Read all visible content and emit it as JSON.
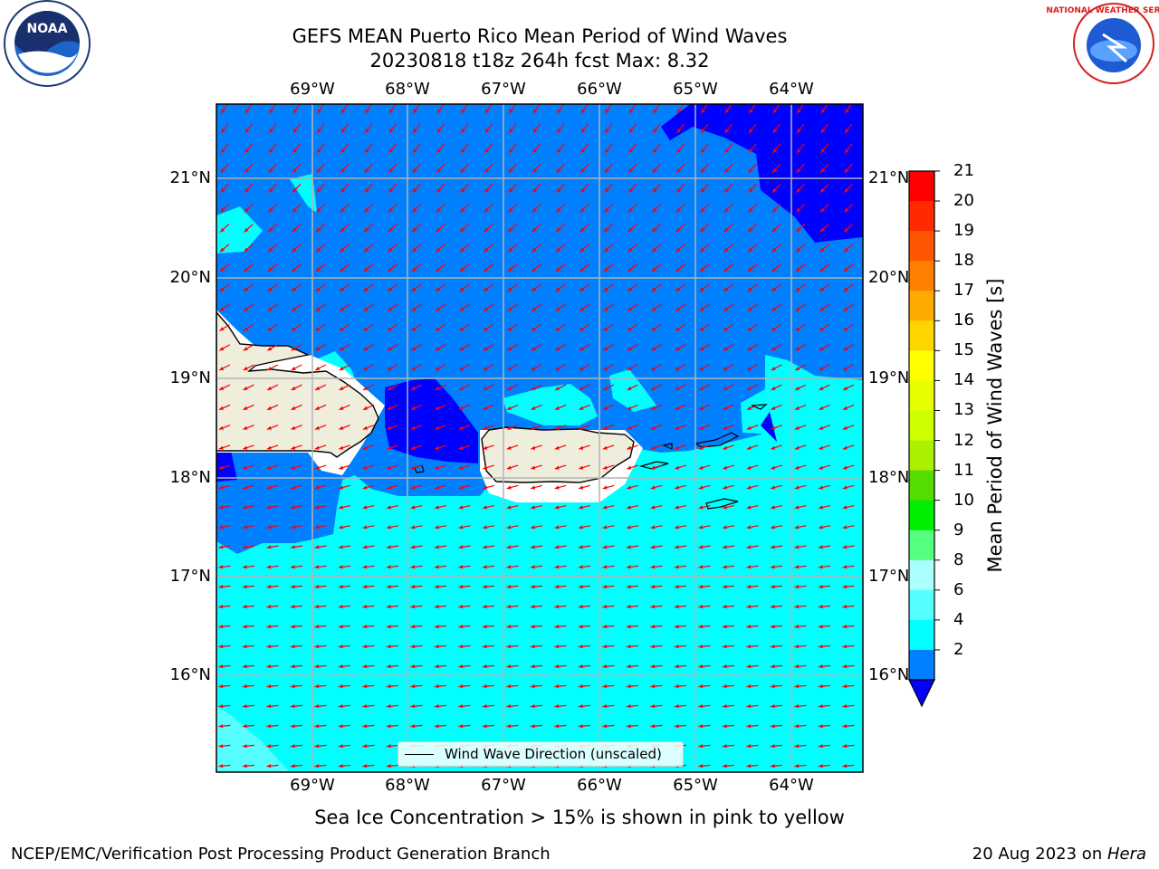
{
  "title": {
    "line1": "GEFS MEAN Puerto Rico Mean Period of Wind Waves",
    "line2": "20230818 t18z 264h fcst   Max: 8.32"
  },
  "logos": {
    "left": "NOAA",
    "right": "NATIONAL WEATHER SERVICE"
  },
  "axes": {
    "lon_labels": [
      "69°W",
      "68°W",
      "67°W",
      "66°W",
      "65°W",
      "64°W"
    ],
    "lat_labels": [
      "21°N",
      "20°N",
      "19°N",
      "18°N",
      "17°N",
      "16°N"
    ]
  },
  "colorbar": {
    "label": "Mean Period of Wind Waves [s]",
    "ticks": [
      "21",
      "20",
      "19",
      "18",
      "17",
      "16",
      "15",
      "14",
      "13",
      "12",
      "11",
      "10",
      "9",
      "8",
      "6",
      "4",
      "2"
    ],
    "colors": [
      "#ff0000",
      "#ff2a00",
      "#ff5500",
      "#ff8000",
      "#ffaa00",
      "#ffd500",
      "#ffff00",
      "#e6ff00",
      "#ccff00",
      "#aaf000",
      "#55dd00",
      "#00ee00",
      "#55ff80",
      "#aaffff",
      "#55ffff",
      "#00ffff",
      "#0080ff"
    ],
    "under_color": "#0000ff"
  },
  "legend": {
    "label": "Wind Wave Direction (unscaled)"
  },
  "footer": {
    "note": "Sea Ice Concentration > 15% is shown in pink to yellow",
    "left": "NCEP/EMC/Verification Post Processing Product Generation Branch",
    "date": "20 Aug 2023 on ",
    "machine": "Hera"
  },
  "colors": {
    "sea_2_4": "#0080ff",
    "sea_4_6": "#00ffff",
    "sea_6_8": "#55ffff",
    "sea_lt_2": "#0000ff",
    "land": "#efeedc",
    "arrow": "#ff0000",
    "grid": "#b4b4b4"
  }
}
